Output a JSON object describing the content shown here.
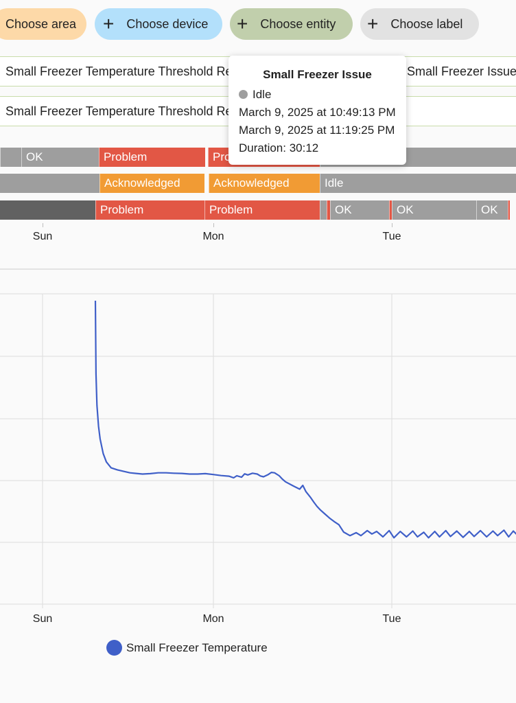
{
  "filters": {
    "area": "Choose area",
    "device": "Choose device",
    "entity": "Choose entity",
    "label": "Choose label"
  },
  "timeline": {
    "entities": [
      "Small Freezer Temperature Threshold Reached",
      "Small Freezer Temperature Threshold Reached",
      "Small Freezer Issue"
    ],
    "rows": [
      [
        {
          "label": "",
          "color": "#9e9e9e"
        },
        {
          "label": "OK",
          "color": "#9e9e9e"
        },
        {
          "label": "Problem",
          "color": "#e25745"
        },
        {
          "label": "Problem",
          "color": "#e25745"
        },
        {
          "label": "",
          "color": "#9e9e9e"
        }
      ],
      [
        {
          "label": "Acknowledged",
          "color": "#f19b34"
        },
        {
          "label": "Acknowledged",
          "color": "#f19b34"
        },
        {
          "label": "Idle",
          "color": "#9e9e9e"
        }
      ],
      [
        {
          "label": "",
          "color": "#616161"
        },
        {
          "label": "Problem",
          "color": "#e25745"
        },
        {
          "label": "Problem",
          "color": "#e25745"
        },
        {
          "label": "",
          "color": "#9e9e9e"
        },
        {
          "label": "",
          "color": "#e25745"
        },
        {
          "label": "OK",
          "color": "#9e9e9e"
        },
        {
          "label": "",
          "color": "#e25745"
        },
        {
          "label": "OK",
          "color": "#9e9e9e"
        },
        {
          "label": "OK",
          "color": "#9e9e9e"
        },
        {
          "label": "",
          "color": "#e25745"
        }
      ]
    ],
    "axis": [
      "Sun",
      "Mon",
      "Tue"
    ]
  },
  "tooltip": {
    "title": "Small Freezer Issue",
    "state": "Idle",
    "start": "March 9, 2025 at 10:49:13 PM",
    "end": "March 9, 2025 at 11:19:25 PM",
    "duration": "Duration: 30:12"
  },
  "chart_data": {
    "type": "line",
    "title": "",
    "xlabel": "",
    "ylabel": "",
    "x_ticks": [
      "Sun",
      "Mon",
      "Tue"
    ],
    "grid": true,
    "legend": "bottom-left",
    "series": [
      {
        "name": "Small Freezer Temperature",
        "color": "#3f5fc8",
        "x": [
          0.0,
          0.004,
          0.01,
          0.02,
          0.03,
          0.05,
          0.07,
          0.1,
          0.14,
          0.18,
          0.22,
          0.26,
          0.3,
          0.35,
          0.4,
          0.45,
          0.5,
          0.55,
          0.6,
          0.65,
          0.7,
          0.75,
          0.8,
          0.85,
          0.88,
          0.9,
          0.93,
          0.95,
          0.97,
          1.0,
          1.03,
          1.05,
          1.07,
          1.1,
          1.12,
          1.14,
          1.17,
          1.19,
          1.21,
          1.26,
          1.3,
          1.32,
          1.34,
          1.37,
          1.39,
          1.41,
          1.43,
          1.46,
          1.49,
          1.52,
          1.55,
          1.58,
          1.62,
          1.66,
          1.69,
          1.73,
          1.76,
          1.79,
          1.83,
          1.87,
          1.9,
          1.94,
          1.98,
          2.02,
          2.05,
          2.09,
          2.12,
          2.16,
          2.19,
          2.23,
          2.26,
          2.3,
          2.34,
          2.38,
          2.41,
          2.45,
          2.49,
          2.53,
          2.56,
          2.6,
          2.63,
          2.66,
          2.7
        ],
        "values": [
          5.5,
          2.0,
          0.5,
          -0.5,
          -1.1,
          -1.8,
          -2.2,
          -2.48,
          -2.58,
          -2.65,
          -2.72,
          -2.75,
          -2.78,
          -2.76,
          -2.72,
          -2.72,
          -2.74,
          -2.75,
          -2.78,
          -2.78,
          -2.76,
          -2.8,
          -2.85,
          -2.88,
          -2.96,
          -2.86,
          -2.93,
          -2.77,
          -2.82,
          -2.74,
          -2.78,
          -2.87,
          -2.91,
          -2.8,
          -2.7,
          -2.72,
          -2.86,
          -3.02,
          -3.15,
          -3.35,
          -3.5,
          -3.32,
          -3.62,
          -3.9,
          -4.12,
          -4.32,
          -4.48,
          -4.68,
          -4.88,
          -5.05,
          -5.2,
          -5.55,
          -5.72,
          -5.58,
          -5.72,
          -5.48,
          -5.64,
          -5.52,
          -5.78,
          -5.48,
          -5.82,
          -5.52,
          -5.78,
          -5.5,
          -5.78,
          -5.56,
          -5.82,
          -5.52,
          -5.78,
          -5.48,
          -5.76,
          -5.5,
          -5.8,
          -5.52,
          -5.76,
          -5.48,
          -5.78,
          -5.5,
          -5.72,
          -5.46,
          -5.78,
          -5.5,
          -5.8
        ]
      }
    ]
  }
}
